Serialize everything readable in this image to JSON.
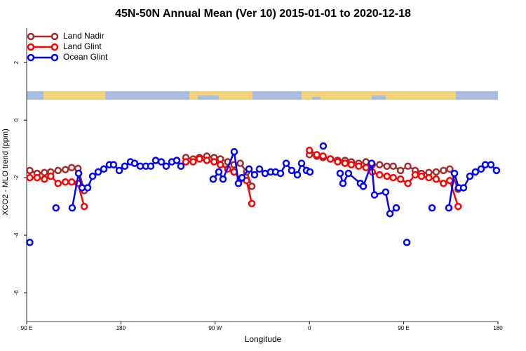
{
  "chart_data": {
    "type": "line",
    "title": "45N-50N Annual Mean (Ver 10)   2015-01-01 to 2020-12-18",
    "x_label": "Longitude",
    "y_label": "XCO2 - MLO trend (ppm)",
    "xlim": [
      90,
      540
    ],
    "ylim": [
      -7,
      3.2
    ],
    "xticks": [
      {
        "value": 90,
        "label": "90 E"
      },
      180,
      {
        "value": 270,
        "label": "90 W"
      },
      {
        "value": 360,
        "label": "0"
      },
      {
        "value": 450,
        "label": "90 E"
      },
      {
        "value": 540,
        "label": "180"
      }
    ],
    "yticks": [
      -6,
      -4,
      -2,
      0,
      2
    ],
    "legend": "top-left",
    "series": [
      {
        "name": "Land Nadir",
        "color": "#a52a2a",
        "x": [
          93,
          100,
          107,
          113,
          120,
          127,
          133,
          139,
          145,
          null,
          242,
          249,
          255,
          262,
          269,
          275,
          282,
          288,
          294,
          300,
          305,
          null,
          360,
          367,
          373,
          380,
          387,
          394,
          400,
          407,
          414,
          420,
          427,
          434,
          440,
          447,
          454,
          461,
          467,
          474,
          481,
          488,
          494,
          502
        ],
        "values": [
          -1.75,
          -1.85,
          -1.82,
          -1.8,
          -1.75,
          -1.72,
          -1.65,
          -1.68,
          -2.45,
          null,
          -1.3,
          -1.35,
          -1.3,
          -1.25,
          -1.3,
          -1.35,
          -1.45,
          -1.55,
          -1.5,
          -1.8,
          -2.3,
          null,
          -1.2,
          -1.25,
          -1.3,
          -1.35,
          -1.4,
          -1.4,
          -1.45,
          -1.5,
          -1.45,
          -1.55,
          -1.55,
          -1.6,
          -1.6,
          -1.75,
          -1.6,
          -1.75,
          -1.85,
          -1.82,
          -1.8,
          -1.75,
          -1.7,
          -2.4
        ]
      },
      {
        "name": "Land Glint",
        "color": "#ff0000",
        "x": [
          93,
          100,
          107,
          113,
          120,
          127,
          133,
          139,
          145,
          null,
          242,
          249,
          255,
          262,
          269,
          275,
          282,
          288,
          294,
          300,
          305,
          null,
          360,
          367,
          373,
          380,
          387,
          394,
          400,
          407,
          414,
          420,
          427,
          434,
          440,
          447,
          454,
          461,
          467,
          474,
          481,
          488,
          494,
          502
        ],
        "values": [
          -2.0,
          -2.0,
          -2.05,
          -1.95,
          -2.2,
          -2.15,
          -2.15,
          -2.2,
          -3.0,
          null,
          -1.45,
          -1.45,
          -1.35,
          -1.4,
          -1.45,
          -1.55,
          -1.7,
          -1.8,
          -2.05,
          -2.1,
          -2.9,
          null,
          -1.05,
          -1.2,
          -1.25,
          -1.35,
          -1.45,
          -1.5,
          -1.55,
          -1.6,
          -1.65,
          -1.8,
          -1.9,
          -1.95,
          -2.0,
          -2.05,
          -2.2,
          -1.9,
          -1.95,
          -2.0,
          -2.05,
          -2.2,
          -2.1,
          -3.0
        ]
      },
      {
        "name": "Ocean Glint",
        "color": "#0000ff",
        "x": [
          93,
          null,
          118,
          null,
          133.5,
          139.6,
          142.9,
          148.3,
          153,
          158.3,
          163.7,
          169,
          173,
          178.4,
          183.7,
          189.1,
          193.1,
          198.5,
          203.8,
          208.5,
          213.2,
          218.6,
          223.2,
          228.6,
          233.3,
          237.3,
          null,
          268.1,
          273.5,
          277.5,
          288.2,
          292.2,
          295.6,
          302.3,
          307.6,
          312.3,
          317.7,
          323,
          327.7,
          332.4,
          337.8,
          343.1,
          348.5,
          352.5,
          357.2,
          360.5,
          null,
          373.2,
          null,
          389.3,
          392,
          397.3,
          408.7,
          411.4,
          419.4,
          422.1,
          432.8,
          436.9,
          442.9,
          null,
          453,
          null,
          477.1,
          null,
          493.1,
          498.5,
          502.5,
          507.2,
          513.2,
          518.5,
          523.9,
          527.9,
          533.3,
          538.6
        ],
        "values": [
          -4.25,
          null,
          -3.05,
          null,
          -3.05,
          -1.85,
          -2.35,
          -2.35,
          -1.95,
          -1.8,
          -1.7,
          -1.55,
          -1.55,
          -1.75,
          -1.6,
          -1.45,
          -1.5,
          -1.6,
          -1.6,
          -1.6,
          -1.4,
          -1.45,
          -1.6,
          -1.45,
          -1.4,
          -1.6,
          null,
          -2.05,
          -1.8,
          -2.05,
          -1.1,
          -2.2,
          -2.0,
          -1.7,
          -1.9,
          -1.7,
          -1.85,
          -1.8,
          -1.8,
          -1.85,
          -1.5,
          -1.75,
          -1.9,
          -1.5,
          -1.75,
          -1.8,
          null,
          -0.9,
          null,
          -1.85,
          -2.2,
          -1.85,
          -2.2,
          -2.3,
          -1.5,
          -2.6,
          -2.5,
          -3.25,
          -3.05,
          null,
          -4.25,
          null,
          -3.05,
          null,
          -3.05,
          -1.85,
          -2.35,
          -2.35,
          -1.95,
          -1.8,
          -1.7,
          -1.55,
          -1.55,
          -1.75
        ]
      }
    ]
  }
}
